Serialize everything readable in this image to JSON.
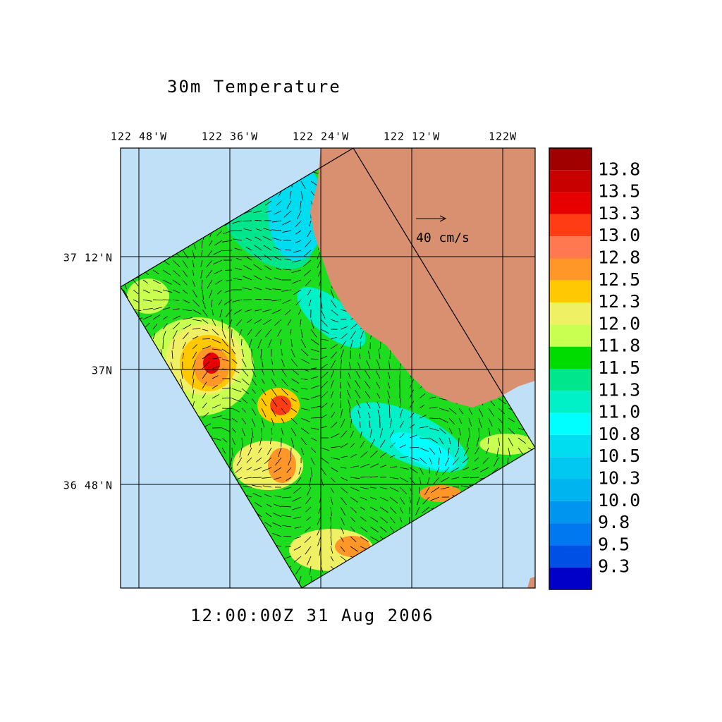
{
  "title": "30m Temperature",
  "time_label": "12:00:00Z  31 Aug 2006",
  "lon_ticks": [
    "122 48'W",
    "122 36'W",
    "122 24'W",
    "122 12'W",
    "122W"
  ],
  "lat_ticks": [
    "37 12'N",
    "37N",
    "36 48'N"
  ],
  "vector_reference": "40 cm/s",
  "colorbar": {
    "colors": [
      "#a00000",
      "#c80000",
      "#e60000",
      "#ff3c14",
      "#ff7850",
      "#ff9628",
      "#ffc800",
      "#f0f064",
      "#c8ff50",
      "#00dc00",
      "#00e68c",
      "#00f0c8",
      "#00ffff",
      "#00dcf0",
      "#00c8f0",
      "#00b4f0",
      "#0096f0",
      "#0078f0",
      "#0050e6",
      "#0000c8"
    ],
    "labels": [
      "13.8",
      "13.5",
      "13.3",
      "13.0",
      "12.8",
      "12.5",
      "12.3",
      "12.0",
      "11.8",
      "11.5",
      "11.3",
      "11.0",
      "10.8",
      "10.5",
      "10.3",
      "10.0",
      "9.8",
      "9.5",
      "9.3"
    ]
  }
}
